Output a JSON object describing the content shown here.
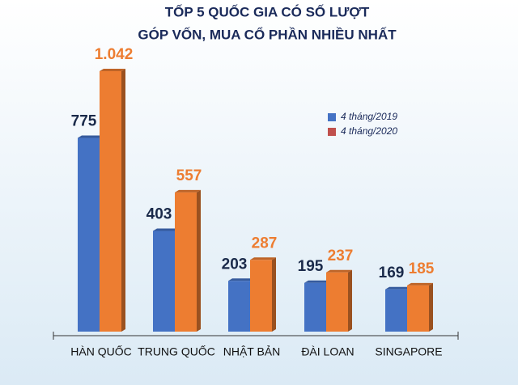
{
  "chart_data": {
    "type": "bar",
    "title": [
      "TỐP 5 QUỐC GIA CÓ SỐ LƯỢT",
      "GÓP VỐN, MUA CỔ PHẦN NHIỀU NHẤT"
    ],
    "categories": [
      "HÀN QUỐC",
      "TRUNG QUỐC",
      "NHẬT BẢN",
      "ĐÀI LOAN",
      "SINGAPORE"
    ],
    "series": [
      {
        "name": "4 tháng/2019",
        "color": "#4472c4",
        "legend_color": "#4472c4",
        "label_color": "#1a2a4a",
        "values": [
          775,
          403,
          203,
          195,
          169
        ]
      },
      {
        "name": "4 tháng/2020",
        "color": "#ed7d31",
        "legend_color": "#c0504d",
        "label_color": "#ed7d31",
        "values": [
          1042,
          557,
          287,
          237,
          185
        ],
        "value_labels": [
          "1.042",
          "557",
          "287",
          "237",
          "185"
        ]
      }
    ],
    "legend": "upper right"
  }
}
